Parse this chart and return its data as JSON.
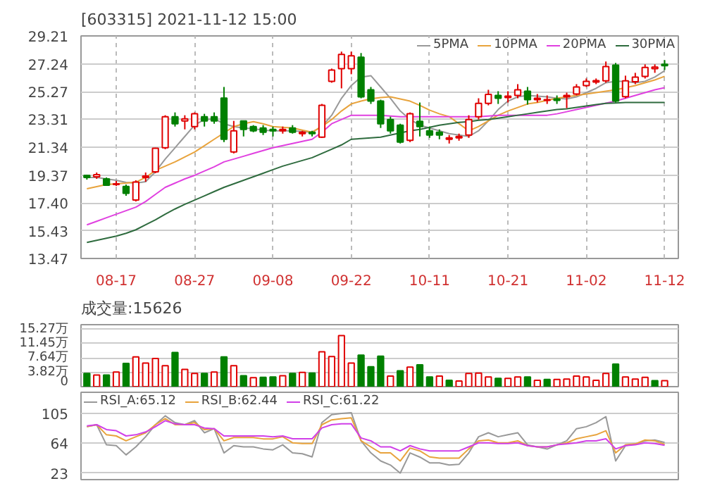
{
  "chart_data": [
    {
      "type": "candlestick",
      "title": "[603315]  2021-11-12  15:00",
      "categories": [
        null,
        null,
        null,
        "08-17",
        null,
        null,
        null,
        null,
        null,
        null,
        null,
        "08-27",
        null,
        null,
        null,
        null,
        null,
        null,
        null,
        "09-08",
        null,
        null,
        null,
        null,
        null,
        null,
        null,
        "09-22",
        null,
        null,
        null,
        null,
        null,
        null,
        null,
        "10-11",
        null,
        null,
        null,
        null,
        null,
        null,
        null,
        "10-21",
        null,
        null,
        null,
        null,
        null,
        null,
        null,
        "11-02",
        null,
        null,
        null,
        null,
        null,
        null,
        null,
        "11-12"
      ],
      "ohlc": [
        [
          19.35,
          19.4,
          19.05,
          19.2
        ],
        [
          19.25,
          19.55,
          19.1,
          19.4
        ],
        [
          19.1,
          19.2,
          18.6,
          18.65
        ],
        [
          18.7,
          18.95,
          18.6,
          18.75
        ],
        [
          18.56,
          18.7,
          17.9,
          18.08
        ],
        [
          17.6,
          19.0,
          17.5,
          18.87
        ],
        [
          19.2,
          19.55,
          18.9,
          19.3
        ],
        [
          19.6,
          21.3,
          19.5,
          21.26
        ],
        [
          21.3,
          23.6,
          21.2,
          23.5
        ],
        [
          23.5,
          23.8,
          22.8,
          23.0
        ],
        [
          23.2,
          23.6,
          22.6,
          23.35
        ],
        [
          22.8,
          23.8,
          22.6,
          23.7
        ],
        [
          23.5,
          23.7,
          22.8,
          23.2
        ],
        [
          23.5,
          23.8,
          23.0,
          23.2
        ],
        [
          24.82,
          25.6,
          21.7,
          21.9
        ],
        [
          21.0,
          23.2,
          20.9,
          22.5
        ],
        [
          23.2,
          23.2,
          22.1,
          22.6
        ],
        [
          22.8,
          22.9,
          22.4,
          22.5
        ],
        [
          22.7,
          22.9,
          22.2,
          22.4
        ],
        [
          22.6,
          22.8,
          22.1,
          22.5
        ],
        [
          22.5,
          22.8,
          22.3,
          22.6
        ],
        [
          22.7,
          22.9,
          22.3,
          22.4
        ],
        [
          22.3,
          22.5,
          22.1,
          22.4
        ],
        [
          22.4,
          22.5,
          22.1,
          22.3
        ],
        [
          22.05,
          24.4,
          22.0,
          24.3
        ],
        [
          26.0,
          26.9,
          25.9,
          26.8
        ],
        [
          26.9,
          28.1,
          25.5,
          27.9
        ],
        [
          26.9,
          28.1,
          26.5,
          27.8
        ],
        [
          27.7,
          28.0,
          24.8,
          24.9
        ],
        [
          25.4,
          25.6,
          24.4,
          24.6
        ],
        [
          24.6,
          24.7,
          22.7,
          23.0
        ],
        [
          23.3,
          23.5,
          22.3,
          22.5
        ],
        [
          22.9,
          23.0,
          21.6,
          21.7
        ],
        [
          21.83,
          23.8,
          21.7,
          23.7
        ],
        [
          23.17,
          24.5,
          22.1,
          22.8
        ],
        [
          22.5,
          22.8,
          22.0,
          22.2
        ],
        [
          22.4,
          22.6,
          21.9,
          22.2
        ],
        [
          21.9,
          22.2,
          21.6,
          22.0
        ],
        [
          22.0,
          22.3,
          21.8,
          22.1
        ],
        [
          22.2,
          23.6,
          22.0,
          23.3
        ],
        [
          23.49,
          24.8,
          23.3,
          24.44
        ],
        [
          24.44,
          25.4,
          24.3,
          25.08
        ],
        [
          25.0,
          25.3,
          24.4,
          24.8
        ],
        [
          24.85,
          25.3,
          24.5,
          24.95
        ],
        [
          25.0,
          25.8,
          24.8,
          25.4
        ],
        [
          25.3,
          25.6,
          24.35,
          24.7
        ],
        [
          24.7,
          25.1,
          24.5,
          24.8
        ],
        [
          24.65,
          25.0,
          24.4,
          24.7
        ],
        [
          24.75,
          25.0,
          24.4,
          24.65
        ],
        [
          24.9,
          25.2,
          24.1,
          25.0
        ],
        [
          25.1,
          25.8,
          25.0,
          25.6
        ],
        [
          25.7,
          26.2,
          25.6,
          26.0
        ],
        [
          25.95,
          26.2,
          25.8,
          26.05
        ],
        [
          26.03,
          27.4,
          25.9,
          27.04
        ],
        [
          27.14,
          27.3,
          24.5,
          24.6
        ],
        [
          24.92,
          26.4,
          24.8,
          26.03
        ],
        [
          25.97,
          26.6,
          25.8,
          26.3
        ],
        [
          26.35,
          27.2,
          26.2,
          26.98
        ],
        [
          26.9,
          27.2,
          26.6,
          27.0
        ],
        [
          27.2,
          27.5,
          26.8,
          27.1
        ]
      ],
      "series": [
        {
          "name": "5PMA",
          "type": "line",
          "color": "#999999",
          "values": [
            19.2,
            19.2,
            19.1,
            19.0,
            18.85,
            18.8,
            18.9,
            19.6,
            20.5,
            21.3,
            22.1,
            22.9,
            23.3,
            23.35,
            23.0,
            22.8,
            22.7,
            22.65,
            22.55,
            22.5,
            22.5,
            22.5,
            22.45,
            22.4,
            22.8,
            23.6,
            24.8,
            25.7,
            26.3,
            26.4,
            25.6,
            24.8,
            23.9,
            23.3,
            22.9,
            22.7,
            22.5,
            22.3,
            22.2,
            22.1,
            22.5,
            23.2,
            24.0,
            24.6,
            24.9,
            25.0,
            24.95,
            24.9,
            24.8,
            24.75,
            24.9,
            25.2,
            25.5,
            25.9,
            26.0,
            26.0,
            25.9,
            26.0,
            26.3,
            26.75
          ]
        },
        {
          "name": "10PMA",
          "type": "line",
          "color": "#e8a33c",
          "values": [
            18.4,
            18.55,
            18.7,
            18.75,
            18.8,
            18.87,
            19.2,
            19.7,
            20.0,
            20.3,
            20.65,
            21.0,
            21.45,
            21.9,
            22.35,
            22.8,
            23.0,
            23.15,
            23.0,
            22.8,
            22.75,
            22.7,
            22.55,
            22.4,
            22.8,
            23.3,
            23.9,
            24.4,
            24.6,
            24.76,
            24.85,
            24.9,
            24.75,
            24.6,
            24.3,
            23.96,
            23.7,
            23.5,
            23.0,
            22.5,
            22.8,
            23.2,
            23.6,
            23.9,
            24.15,
            24.4,
            24.5,
            24.65,
            24.8,
            24.9,
            25.0,
            25.1,
            25.2,
            25.3,
            25.4,
            25.55,
            25.7,
            25.9,
            26.1,
            26.35
          ]
        },
        {
          "name": "20PMA",
          "type": "line",
          "color": "#e040e0",
          "values": [
            15.85,
            16.1,
            16.35,
            16.6,
            16.85,
            17.1,
            17.5,
            18.0,
            18.5,
            18.8,
            19.1,
            19.35,
            19.65,
            19.95,
            20.3,
            20.5,
            20.7,
            20.9,
            21.1,
            21.3,
            21.45,
            21.6,
            21.75,
            21.9,
            22.4,
            23.0,
            23.3,
            23.6,
            23.6,
            23.6,
            23.6,
            23.55,
            23.5,
            23.5,
            23.5,
            23.5,
            23.5,
            23.5,
            23.5,
            23.5,
            23.5,
            23.55,
            23.6,
            23.6,
            23.6,
            23.6,
            23.6,
            23.6,
            23.7,
            23.85,
            24.0,
            24.15,
            24.3,
            24.45,
            24.6,
            24.8,
            25.0,
            25.2,
            25.4,
            25.55
          ]
        },
        {
          "name": "30PMA",
          "type": "line",
          "color": "#2e6b3e",
          "values": [
            14.6,
            14.75,
            14.9,
            15.05,
            15.25,
            15.5,
            15.85,
            16.2,
            16.6,
            16.97,
            17.3,
            17.6,
            17.9,
            18.2,
            18.5,
            18.75,
            19.0,
            19.25,
            19.5,
            19.75,
            20.0,
            20.2,
            20.4,
            20.6,
            20.9,
            21.2,
            21.5,
            21.9,
            21.95,
            22.0,
            22.05,
            22.2,
            22.35,
            22.5,
            22.6,
            22.75,
            22.9,
            23.0,
            23.1,
            23.15,
            23.25,
            23.3,
            23.4,
            23.5,
            23.6,
            23.7,
            23.8,
            23.9,
            24.0,
            24.06,
            24.15,
            24.25,
            24.35,
            24.44,
            24.47,
            24.5,
            24.5,
            24.5,
            24.5,
            24.5
          ]
        }
      ],
      "ylim": [
        13.47,
        29.21
      ],
      "yticks": [
        13.47,
        15.43,
        {
          "value": 17.4,
          "label": "17.40"
        },
        19.37,
        21.34,
        23.31,
        25.27,
        27.24,
        29.21
      ],
      "grid": true,
      "legend": "top right"
    },
    {
      "type": "bar",
      "title": "成交量:15626",
      "categories": [
        null,
        null,
        null,
        null,
        null,
        null,
        null,
        null,
        null,
        null,
        null,
        null,
        null,
        null,
        null,
        null,
        null,
        null,
        null,
        null,
        null,
        null,
        null,
        null,
        null,
        null,
        null,
        null,
        null,
        null,
        null,
        null,
        null,
        null,
        null,
        null,
        null,
        null,
        null,
        null,
        null,
        null,
        null,
        null,
        null,
        null,
        null,
        null,
        null,
        null,
        null,
        null,
        null,
        null,
        null,
        null,
        null,
        null,
        null,
        null
      ],
      "values": [
        3.5,
        3.1,
        3.1,
        3.9,
        6.2,
        7.9,
        6.3,
        7.5,
        5.6,
        9.1,
        4.6,
        3.5,
        3.5,
        3.9,
        7.9,
        5.6,
        2.9,
        2.4,
        2.5,
        2.6,
        2.9,
        3.5,
        3.8,
        3.6,
        9.3,
        8.0,
        13.6,
        6.3,
        8.4,
        5.3,
        8.1,
        2.8,
        4.2,
        5.2,
        5.8,
        2.6,
        2.8,
        1.7,
        1.5,
        3.5,
        3.6,
        2.6,
        2.2,
        2.2,
        2.6,
        2.6,
        1.7,
        1.9,
        1.9,
        2.0,
        2.8,
        2.6,
        1.7,
        3.5,
        6.0,
        2.6,
        2.0,
        2.5,
        1.6,
        1.6
      ],
      "colors": [
        "#008000",
        "#e00000",
        "#008000",
        "#e00000",
        "#008000",
        "#e00000",
        "#e00000",
        "#e00000",
        "#e00000",
        "#008000",
        "#e00000",
        "#e00000",
        "#008000",
        "#e00000",
        "#008000",
        "#e00000",
        "#008000",
        "#e00000",
        "#008000",
        "#008000",
        "#e00000",
        "#008000",
        "#e00000",
        "#008000",
        "#e00000",
        "#e00000",
        "#e00000",
        "#e00000",
        "#008000",
        "#008000",
        "#008000",
        "#e00000",
        "#008000",
        "#e00000",
        "#008000",
        "#008000",
        "#e00000",
        "#008000",
        "#e00000",
        "#e00000",
        "#e00000",
        "#e00000",
        "#008000",
        "#e00000",
        "#e00000",
        "#008000",
        "#e00000",
        "#008000",
        "#e00000",
        "#e00000",
        "#e00000",
        "#e00000",
        "#e00000",
        "#e00000",
        "#008000",
        "#e00000",
        "#e00000",
        "#e00000",
        "#008000",
        "#e00000"
      ],
      "ylim": [
        0,
        16.5
      ],
      "yticks": [
        0,
        {
          "value": 3.82,
          "label": "3.82万"
        },
        {
          "value": 7.64,
          "label": "7.64万"
        },
        {
          "value": 11.45,
          "label": "11.45万"
        },
        {
          "value": 15.27,
          "label": "15.27万"
        }
      ],
      "grid": "y",
      "tick_labels": "y"
    },
    {
      "type": "line",
      "categories": [
        null,
        null,
        null,
        null,
        null,
        null,
        null,
        null,
        null,
        null,
        null,
        null,
        null,
        null,
        null,
        null,
        null,
        null,
        null,
        null,
        null,
        null,
        null,
        null,
        null,
        null,
        null,
        null,
        null,
        null,
        null,
        null,
        null,
        null,
        null,
        null,
        null,
        null,
        null,
        null,
        null,
        null,
        null,
        null,
        null,
        null,
        null,
        null,
        null,
        null,
        null,
        null,
        null,
        null,
        null,
        null,
        null,
        null,
        null,
        null
      ],
      "series": [
        {
          "name": "RSI_A:65.12",
          "color": "#999999",
          "values": [
            86.7,
            89.5,
            61.8,
            60.7,
            48,
            59,
            72.9,
            89.5,
            101.7,
            92.3,
            89.5,
            95,
            78.4,
            84,
            50.7,
            60.7,
            59,
            59,
            56.2,
            55,
            61.8,
            50.7,
            49.6,
            45.2,
            92.3,
            103.3,
            105,
            106,
            67.3,
            50.7,
            39.6,
            34,
            23,
            50.7,
            45,
            37,
            37,
            34,
            35,
            50.7,
            72.9,
            78.4,
            72.9,
            75.6,
            78.4,
            61.8,
            59,
            56,
            61.8,
            67.3,
            84,
            86.7,
            92.3,
            100.6,
            39.6,
            60.7,
            63,
            67.3,
            68.4,
            65.12
          ]
        },
        {
          "name": "RSI_B:62.44",
          "color": "#e8a33c",
          "values": [
            86.7,
            89.5,
            75.6,
            74,
            67.3,
            72.9,
            78.4,
            89.5,
            97.8,
            89.5,
            89.5,
            92.3,
            82.8,
            84,
            67.3,
            71.8,
            71.8,
            71.8,
            70,
            70,
            72.9,
            64.6,
            63.5,
            63.5,
            89.5,
            96.1,
            97.8,
            98.9,
            67.3,
            59,
            50.7,
            50.7,
            39.6,
            57.4,
            53.5,
            45.2,
            43.5,
            43.5,
            43.5,
            56.2,
            67.3,
            68.4,
            64.6,
            64.6,
            67.3,
            60.7,
            59,
            59,
            61.8,
            64.6,
            70.1,
            72.9,
            75.6,
            81.2,
            50.7,
            61.8,
            63,
            68.4,
            67.3,
            62.44
          ]
        },
        {
          "name": "RSI_C:61.22",
          "color": "#d040e8",
          "values": [
            87.8,
            89.5,
            82.8,
            81.2,
            74,
            75.6,
            79.5,
            86.7,
            95,
            90.6,
            89.5,
            89.5,
            85,
            84,
            74,
            74,
            74,
            74,
            74,
            72.9,
            74,
            70.1,
            70.1,
            70.1,
            85,
            89.5,
            90.6,
            90.6,
            71.2,
            67.3,
            59,
            59,
            53.5,
            60.7,
            56.2,
            53.5,
            53.5,
            53.5,
            53.5,
            59,
            64.6,
            64.6,
            63.5,
            63.5,
            64.6,
            60.7,
            59,
            59,
            61.8,
            63,
            64.6,
            67.3,
            67.3,
            70.1,
            56.2,
            60.7,
            61.8,
            64.6,
            63.5,
            61.22
          ]
        }
      ],
      "ylim": [
        14,
        134
      ],
      "yticks": [
        23,
        64,
        105
      ],
      "grid": "y",
      "legend": "top left",
      "tick_labels": "y"
    }
  ]
}
